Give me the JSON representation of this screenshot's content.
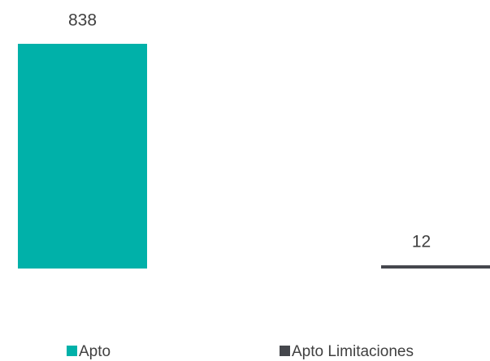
{
  "chart_data": {
    "type": "bar",
    "series": [
      {
        "name": "Apto",
        "color": "#00b1a9",
        "values": [
          838
        ]
      },
      {
        "name": "Apto Limitaciones",
        "color": "#45474d",
        "values": [
          12
        ]
      }
    ]
  }
}
